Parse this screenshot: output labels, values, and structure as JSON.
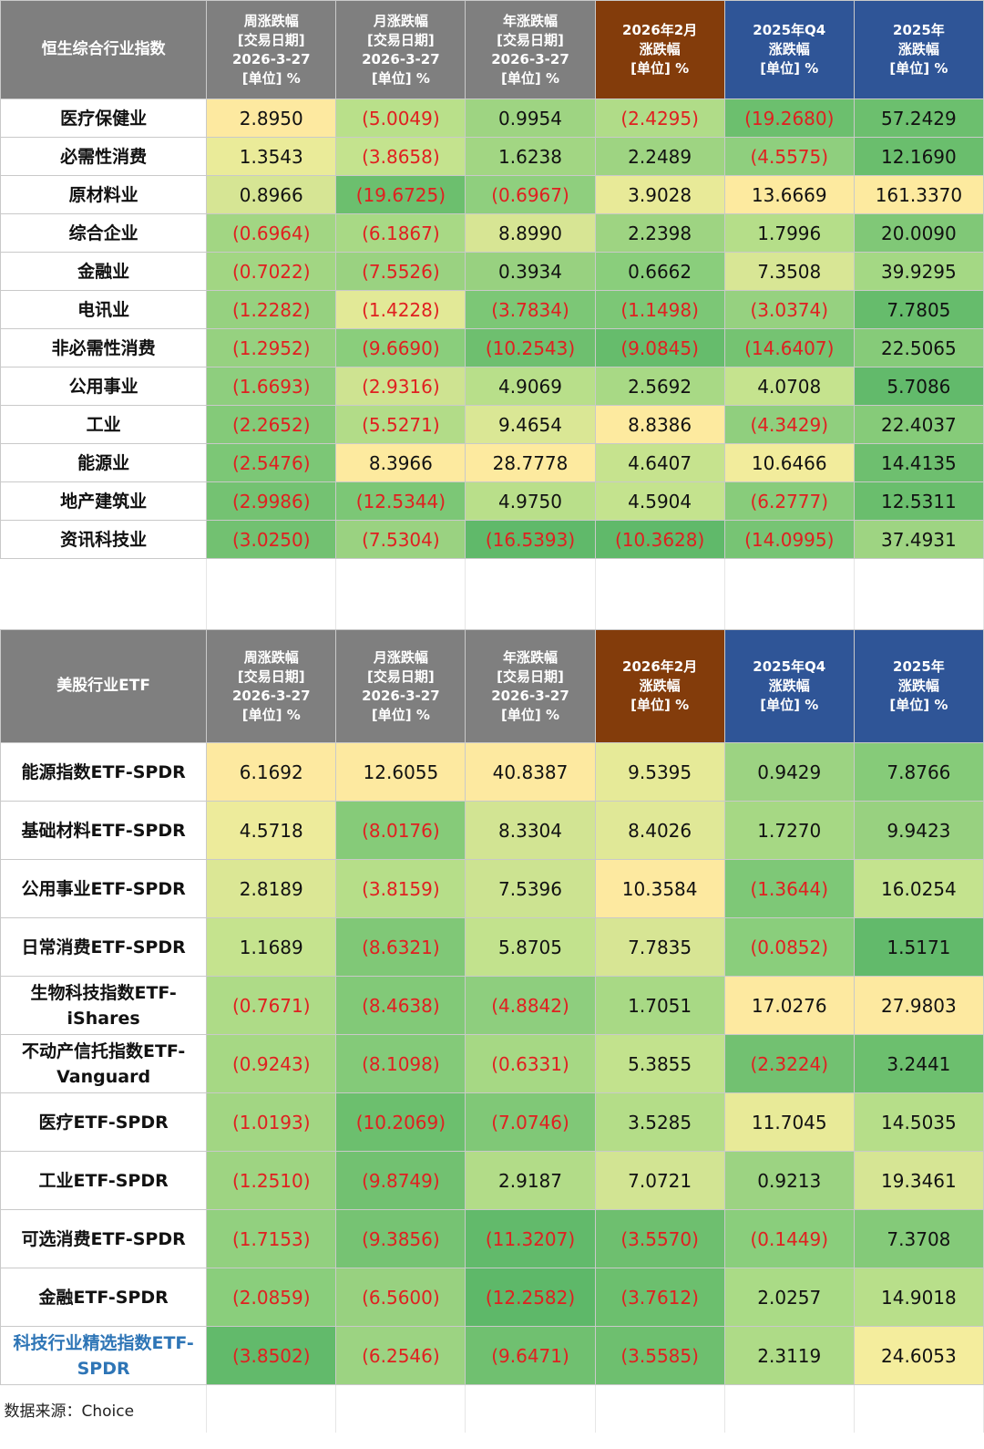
{
  "hk_table": {
    "title": "恒生综合行业指数",
    "headers": [
      {
        "lines": [
          "周涨跌幅",
          "[交易日期]",
          "2026-3-27",
          "[单位] %"
        ],
        "style": "gray"
      },
      {
        "lines": [
          "月涨跌幅",
          "[交易日期]",
          "2026-3-27",
          "[单位] %"
        ],
        "style": "gray"
      },
      {
        "lines": [
          "年涨跌幅",
          "[交易日期]",
          "2026-3-27",
          "[单位] %"
        ],
        "style": "gray"
      },
      {
        "lines": [
          "2026年2月",
          "涨跌幅",
          "[单位] %"
        ],
        "style": "brown"
      },
      {
        "lines": [
          "2025年Q4",
          "涨跌幅",
          "[单位] %"
        ],
        "style": "blue"
      },
      {
        "lines": [
          "2025年",
          "涨跌幅",
          "[单位] %"
        ],
        "style": "blue"
      }
    ],
    "rows": [
      {
        "name": "医疗保健业",
        "values": [
          "2.8950",
          "(5.0049)",
          "0.9954",
          "(2.4295)",
          "(19.2680)",
          "57.2429"
        ],
        "colors": [
          "#fde9a0",
          "#b9e08a",
          "#9ed482",
          "#b0dc88",
          "#6cbf6e",
          "#6cbf6e"
        ]
      },
      {
        "name": "必需性消费",
        "values": [
          "1.3543",
          "(3.8658)",
          "1.6238",
          "2.2489",
          "(4.5575)",
          "12.1690"
        ],
        "colors": [
          "#eaeb99",
          "#c4e38e",
          "#a2d683",
          "#9ed482",
          "#8fcf7e",
          "#6abe6d"
        ]
      },
      {
        "name": "原材料业",
        "values": [
          "0.8966",
          "(19.6725)",
          "(0.6967)",
          "3.9028",
          "13.6669",
          "161.3370"
        ],
        "colors": [
          "#d6e594",
          "#6cbf6e",
          "#8fcf7e",
          "#e8ea98",
          "#fdea9f",
          "#fdea9f"
        ]
      },
      {
        "name": "综合企业",
        "values": [
          "(0.6964)",
          "(6.1867)",
          "8.8990",
          "2.2398",
          "1.7996",
          "20.0090"
        ],
        "colors": [
          "#a2d683",
          "#a8d985",
          "#d7e594",
          "#9ed482",
          "#b5de89",
          "#80c877"
        ]
      },
      {
        "name": "金融业",
        "values": [
          "(0.7022)",
          "(7.5526)",
          "0.3934",
          "0.6662",
          "7.3508",
          "39.9295"
        ],
        "colors": [
          "#a2d683",
          "#9ad281",
          "#98d180",
          "#8ace7c",
          "#d8e695",
          "#a4d884"
        ]
      },
      {
        "name": "电讯业",
        "values": [
          "(1.2282)",
          "(1.4228)",
          "(3.7834)",
          "(1.1498)",
          "(3.0374)",
          "7.7805"
        ],
        "colors": [
          "#96d180",
          "#e2e997",
          "#7cc776",
          "#7cc776",
          "#96d180",
          "#66bc6c"
        ]
      },
      {
        "name": "非必需性消费",
        "values": [
          "(1.2952)",
          "(9.6690)",
          "(10.2543)",
          "(9.0845)",
          "(14.6407)",
          "22.5065"
        ],
        "colors": [
          "#96d180",
          "#8ace7c",
          "#6ebf6f",
          "#66bc6c",
          "#75c372",
          "#86cb79"
        ]
      },
      {
        "name": "公用事业",
        "values": [
          "(1.6693)",
          "(2.9316)",
          "4.9069",
          "2.5692",
          "4.0708",
          "5.7086"
        ],
        "colors": [
          "#8ece7e",
          "#cee391",
          "#b8df8a",
          "#a8d985",
          "#c5e38e",
          "#62ba6b"
        ]
      },
      {
        "name": "工业",
        "values": [
          "(2.2652)",
          "(5.5271)",
          "9.4654",
          "8.8386",
          "(4.3429)",
          "22.4037"
        ],
        "colors": [
          "#84ca79",
          "#b2dc88",
          "#dae795",
          "#fdea9f",
          "#90cf7e",
          "#86cb79"
        ]
      },
      {
        "name": "能源业",
        "values": [
          "(2.5476)",
          "8.3966",
          "28.7778",
          "4.6407",
          "10.6466",
          "14.4135"
        ],
        "colors": [
          "#7cc776",
          "#fdea9f",
          "#fdea9f",
          "#c6e38e",
          "#f2ec9c",
          "#6ebf6f"
        ]
      },
      {
        "name": "地产建筑业",
        "values": [
          "(2.9986)",
          "(12.5344)",
          "4.9750",
          "4.5904",
          "(6.2777)",
          "12.5311"
        ],
        "colors": [
          "#74c272",
          "#7cc776",
          "#b9df8a",
          "#c4e38e",
          "#88cc7b",
          "#6abe6d"
        ]
      },
      {
        "name": "资讯科技业",
        "values": [
          "(3.0250)",
          "(7.5304)",
          "(16.5393)",
          "(10.3628)",
          "(14.0995)",
          "37.4931"
        ],
        "colors": [
          "#72c171",
          "#9ad281",
          "#60b96a",
          "#60b96a",
          "#77c474",
          "#9ed482"
        ]
      }
    ]
  },
  "us_table": {
    "title": "美股行业ETF",
    "headers": [
      {
        "lines": [
          "周涨跌幅",
          "[交易日期]",
          "2026-3-27",
          "[单位] %"
        ],
        "style": "gray"
      },
      {
        "lines": [
          "月涨跌幅",
          "[交易日期]",
          "2026-3-27",
          "[单位] %"
        ],
        "style": "gray"
      },
      {
        "lines": [
          "年涨跌幅",
          "[交易日期]",
          "2026-3-27",
          "[单位] %"
        ],
        "style": "gray"
      },
      {
        "lines": [
          "2026年2月",
          "涨跌幅",
          "[单位] %"
        ],
        "style": "brown"
      },
      {
        "lines": [
          "2025年Q4",
          "涨跌幅",
          "[单位] %"
        ],
        "style": "blue"
      },
      {
        "lines": [
          "2025年",
          "涨跌幅",
          "[单位] %"
        ],
        "style": "blue"
      }
    ],
    "rows": [
      {
        "name": "能源指数ETF-SPDR",
        "link": false,
        "values": [
          "6.1692",
          "12.6055",
          "40.8387",
          "9.5395",
          "0.9429",
          "7.8766"
        ],
        "colors": [
          "#fde9a0",
          "#fde9a0",
          "#fde9a0",
          "#e6ea98",
          "#9cd382",
          "#86cb79"
        ]
      },
      {
        "name": "基础材料ETF-SPDR",
        "link": false,
        "values": [
          "4.5718",
          "(8.0176)",
          "8.3304",
          "8.4026",
          "1.7270",
          "9.9423"
        ],
        "colors": [
          "#edeb9b",
          "#86cb79",
          "#d2e493",
          "#e0e897",
          "#a6d884",
          "#98d180"
        ]
      },
      {
        "name": "公用事业ETF-SPDR",
        "link": false,
        "values": [
          "2.8189",
          "(3.8159)",
          "7.5396",
          "10.3584",
          "(1.3644)",
          "16.0254"
        ],
        "colors": [
          "#dbe795",
          "#b6de89",
          "#cce391",
          "#fde9a0",
          "#7ec877",
          "#c4e38e"
        ]
      },
      {
        "name": "日常消费ETF-SPDR",
        "link": false,
        "values": [
          "1.1689",
          "(8.6321)",
          "5.8705",
          "7.7835",
          "(0.0852)",
          "1.5171"
        ],
        "colors": [
          "#c5e38e",
          "#80c877",
          "#c2e28d",
          "#d7e594",
          "#8ace7c",
          "#62ba6b"
        ]
      },
      {
        "name": "生物科技指数ETF-\niShares",
        "link": false,
        "values": [
          "(0.7671)",
          "(8.4638)",
          "(4.8842)",
          "1.7051",
          "17.0276",
          "27.9803"
        ],
        "colors": [
          "#aedb87",
          "#82c978",
          "#8ece7e",
          "#a8d985",
          "#fde9a0",
          "#fde9a0"
        ]
      },
      {
        "name": "不动产信托指数ETF-\nVanguard",
        "link": false,
        "values": [
          "(0.9243)",
          "(8.1098)",
          "(0.6331)",
          "5.3855",
          "(2.3224)",
          "3.2441"
        ],
        "colors": [
          "#a6d884",
          "#84ca79",
          "#a6d884",
          "#c2e28d",
          "#72c171",
          "#6cbf6e"
        ]
      },
      {
        "name": "医疗ETF-SPDR",
        "link": false,
        "values": [
          "(1.0193)",
          "(10.2069)",
          "(7.0746)",
          "3.5285",
          "11.7045",
          "14.5035"
        ],
        "colors": [
          "#a2d683",
          "#6cbf6e",
          "#80c877",
          "#b4dd88",
          "#e8ea98",
          "#b6de89"
        ]
      },
      {
        "name": "工业ETF-SPDR",
        "link": false,
        "values": [
          "(1.2510)",
          "(9.8749)",
          "2.9187",
          "7.0721",
          "0.9213",
          "19.3461"
        ],
        "colors": [
          "#9ed482",
          "#72c171",
          "#b2dc88",
          "#d2e493",
          "#9cd382",
          "#d6e594"
        ]
      },
      {
        "name": "可选消费ETF-SPDR",
        "link": false,
        "values": [
          "(1.7153)",
          "(9.3856)",
          "(11.3207)",
          "(3.5570)",
          "(0.1449)",
          "7.3708"
        ],
        "colors": [
          "#92d07f",
          "#76c373",
          "#62ba6b",
          "#6ebf6f",
          "#8ace7c",
          "#84ca79"
        ]
      },
      {
        "name": "金融ETF-SPDR",
        "link": false,
        "values": [
          "(2.0859)",
          "(6.5600)",
          "(12.2582)",
          "(3.7612)",
          "2.0257",
          "14.9018"
        ],
        "colors": [
          "#8ace7c",
          "#98d180",
          "#5eb869",
          "#6cbf6e",
          "#aadb86",
          "#b8df8a"
        ]
      },
      {
        "name": "科技行业精选指数ETF-\nSPDR",
        "link": true,
        "values": [
          "(3.8502)",
          "(6.2546)",
          "(9.6471)",
          "(3.5585)",
          "2.3119",
          "24.6053"
        ],
        "colors": [
          "#62ba6b",
          "#9cd382",
          "#70c070",
          "#6ebf6f",
          "#aedb87",
          "#f4ed9d"
        ]
      }
    ]
  },
  "footer": {
    "source": "数据来源：Choice"
  }
}
